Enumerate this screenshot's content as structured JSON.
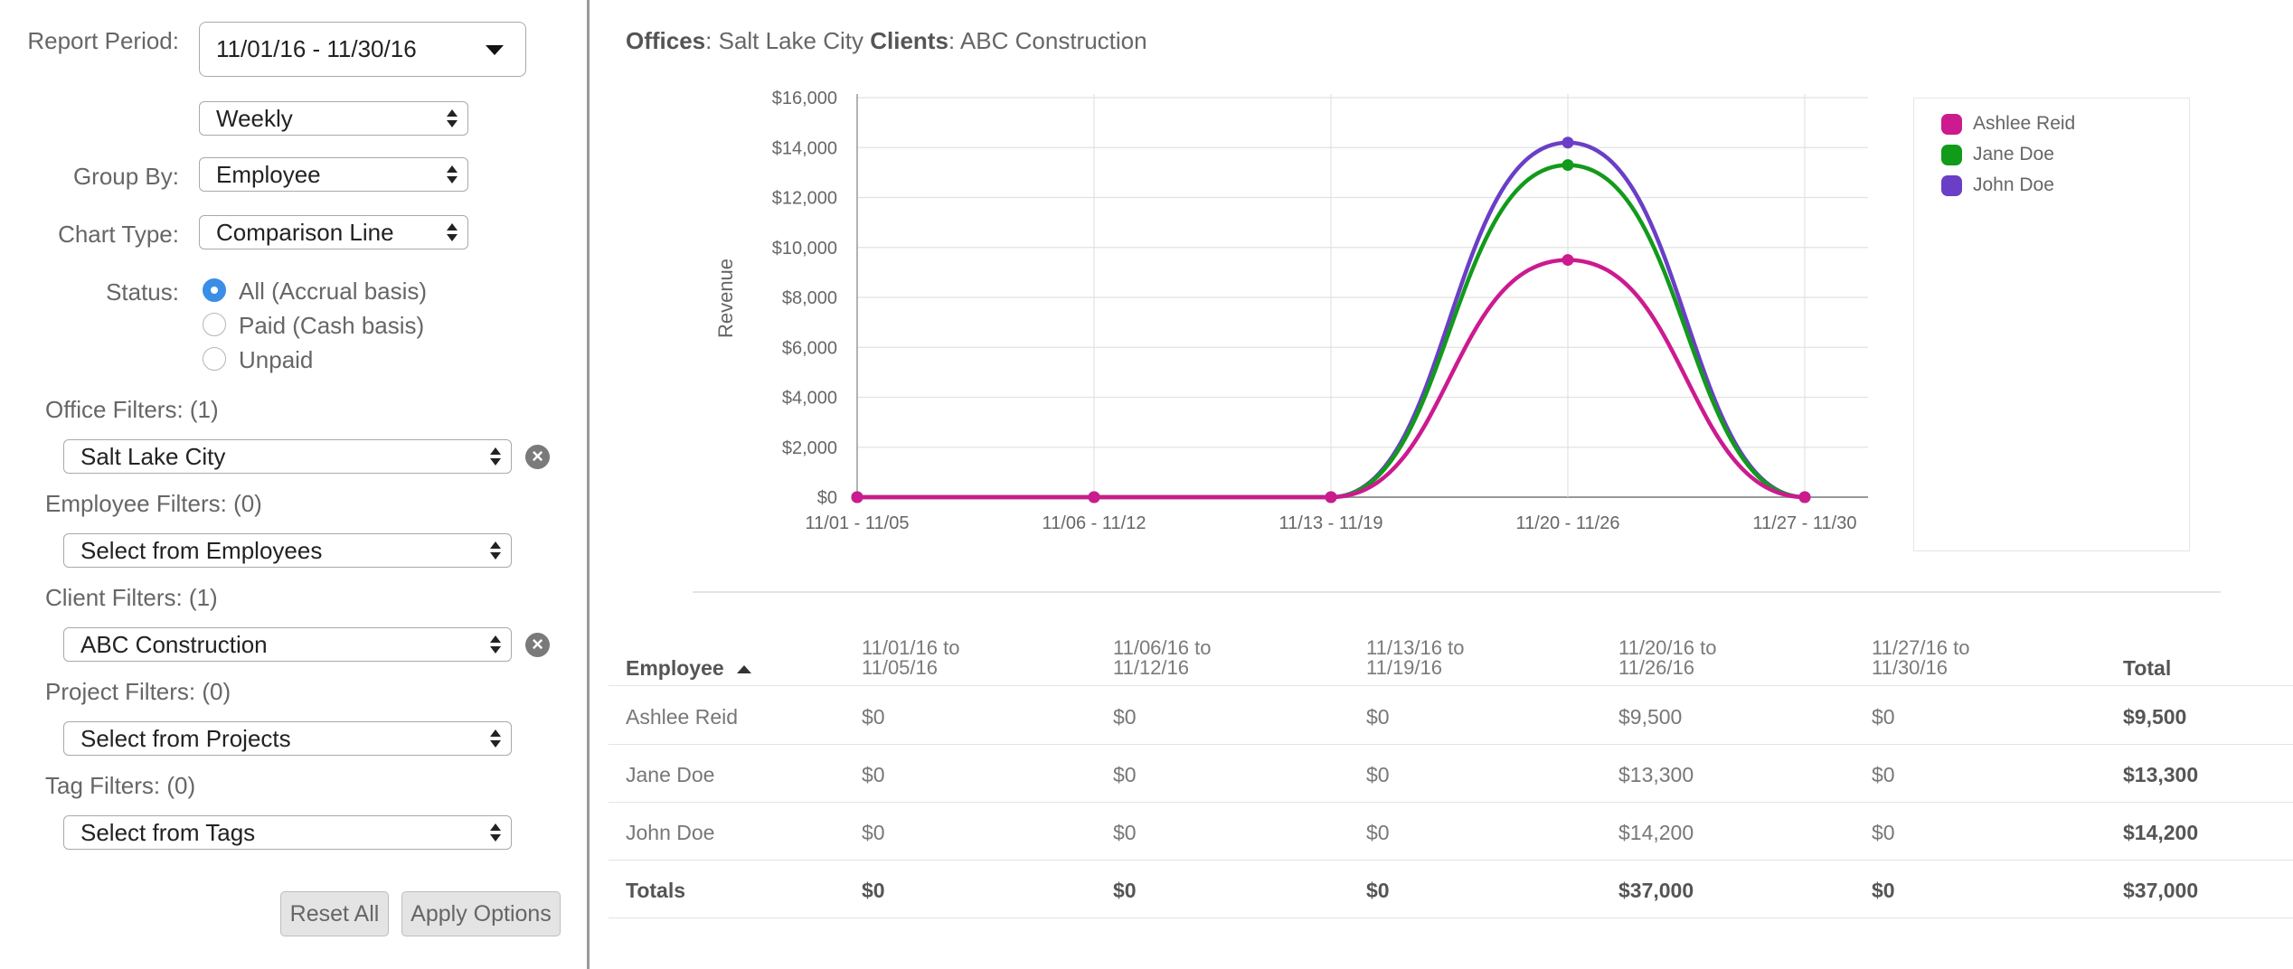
{
  "sidebar": {
    "report_period_label": "Report Period:",
    "report_period_value": "11/01/16 - 11/30/16",
    "interval_value": "Weekly",
    "group_by_label": "Group By:",
    "group_by_value": "Employee",
    "chart_type_label": "Chart Type:",
    "chart_type_value": "Comparison Line",
    "status_label": "Status:",
    "status_options": [
      {
        "label": "All (Accrual basis)",
        "selected": true
      },
      {
        "label": "Paid (Cash basis)",
        "selected": false
      },
      {
        "label": "Unpaid",
        "selected": false
      }
    ],
    "office_filters_label": "Office Filters: (1)",
    "office_filter_value": "Salt Lake City",
    "employee_filters_label": "Employee Filters: (0)",
    "employee_filter_placeholder": "Select from Employees",
    "client_filters_label": "Client Filters: (1)",
    "client_filter_value": "ABC Construction",
    "project_filters_label": "Project Filters: (0)",
    "project_filter_placeholder": "Select from Projects",
    "tag_filters_label": "Tag Filters: (0)",
    "tag_filter_placeholder": "Select from Tags",
    "reset_label": "Reset All",
    "apply_label": "Apply Options",
    "clear_glyph": "×"
  },
  "summary": {
    "offices_key": "Offices",
    "offices_value": ": Salt Lake City ",
    "clients_key": "Clients",
    "clients_value": ": ABC Construction"
  },
  "chart_data": {
    "type": "line",
    "ylabel": "Revenue",
    "categories": [
      "11/01 - 11/05",
      "11/06 - 11/12",
      "11/13 - 11/19",
      "11/20 - 11/26",
      "11/27 - 11/30"
    ],
    "ylim": [
      0,
      16000
    ],
    "yticks": [
      "$0",
      "$2,000",
      "$4,000",
      "$6,000",
      "$8,000",
      "$10,000",
      "$12,000",
      "$14,000",
      "$16,000"
    ],
    "grid": true,
    "smooth": true,
    "legend_position": "right",
    "series": [
      {
        "name": "John Doe",
        "color": "#6a3fc6",
        "values": [
          0,
          0,
          0,
          14200,
          0
        ]
      },
      {
        "name": "Jane Doe",
        "color": "#129a1b",
        "values": [
          0,
          0,
          0,
          13300,
          0
        ]
      },
      {
        "name": "Ashlee Reid",
        "color": "#cc1a8f",
        "values": [
          0,
          0,
          0,
          9500,
          0
        ]
      }
    ]
  },
  "legend": [
    {
      "name": "Ashlee Reid",
      "color": "#cc1a8f"
    },
    {
      "name": "Jane Doe",
      "color": "#129a1b"
    },
    {
      "name": "John Doe",
      "color": "#6a3fc6"
    }
  ],
  "table": {
    "headers": [
      {
        "text": "Employee"
      },
      {
        "line1": "11/01/16 to",
        "line2": "11/05/16"
      },
      {
        "line1": "11/06/16 to",
        "line2": "11/12/16"
      },
      {
        "line1": "11/13/16 to",
        "line2": "11/19/16"
      },
      {
        "line1": "11/20/16 to",
        "line2": "11/26/16"
      },
      {
        "line1": "11/27/16 to",
        "line2": "11/30/16"
      },
      {
        "text": "Total"
      }
    ],
    "rows": [
      [
        "Ashlee Reid",
        "$0",
        "$0",
        "$0",
        "$9,500",
        "$0",
        "$9,500"
      ],
      [
        "Jane Doe",
        "$0",
        "$0",
        "$0",
        "$13,300",
        "$0",
        "$13,300"
      ],
      [
        "John Doe",
        "$0",
        "$0",
        "$0",
        "$14,200",
        "$0",
        "$14,200"
      ]
    ],
    "totals": [
      "Totals",
      "$0",
      "$0",
      "$0",
      "$37,000",
      "$0",
      "$37,000"
    ]
  }
}
